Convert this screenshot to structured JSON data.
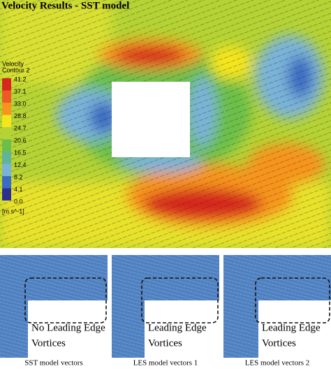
{
  "title": "Velocity Results - SST model",
  "legend": {
    "title": "Velocity",
    "subtitle": "Contour 2",
    "labels": [
      "41.2",
      "37.1",
      "33.0",
      "28.8",
      "24.7",
      "20.6",
      "16.5",
      "12.4",
      "8.2",
      "4.1",
      "0.0"
    ],
    "colors": [
      "#d7261e",
      "#ee5a24",
      "#f7941d",
      "#f5e51b",
      "#b5d334",
      "#6cbf4a",
      "#5fb59a",
      "#7ab3d8",
      "#3a6cc2",
      "#2c2f8f"
    ],
    "unit": "[m s^-1]"
  },
  "panels": [
    {
      "label_lines": [
        "No Leading Edge",
        "Vortices"
      ],
      "caption": "SST model vectors"
    },
    {
      "label_lines": [
        "Leading Edge",
        "Vortices"
      ],
      "caption": "LES model vectors 1"
    },
    {
      "label_lines": [
        "Leading Edge",
        "Vortices"
      ],
      "caption": "LES model vectors 2"
    }
  ]
}
